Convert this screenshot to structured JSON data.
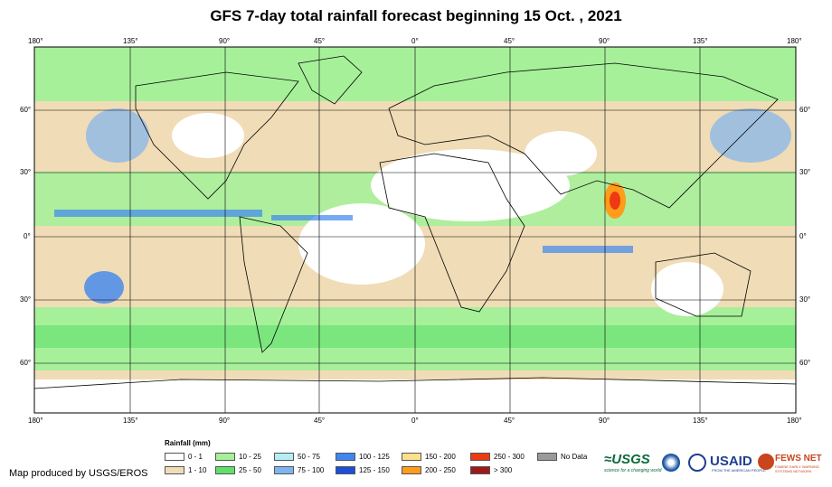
{
  "title": "GFS 7-day total rainfall forecast beginning 15 Oct. , 2021",
  "lon_labels": [
    "180°",
    "135°",
    "90°",
    "45°",
    "0°",
    "45°",
    "90°",
    "135°",
    "180°"
  ],
  "lat_labels": [
    "60°",
    "30°",
    "0°",
    "30°",
    "60°"
  ],
  "legend": {
    "title": "Rainfall (mm)",
    "items": [
      {
        "label": "0 - 1",
        "color": "#ffffff"
      },
      {
        "label": "1 - 10",
        "color": "#f0dcb6"
      },
      {
        "label": "10 - 25",
        "color": "#a6f09a"
      },
      {
        "label": "25 - 50",
        "color": "#5ee06a"
      },
      {
        "label": "50 - 75",
        "color": "#b4eef4"
      },
      {
        "label": "75 - 100",
        "color": "#7fb4f0"
      },
      {
        "label": "100 - 125",
        "color": "#3f86f0"
      },
      {
        "label": "125 - 150",
        "color": "#1c4fd8"
      },
      {
        "label": "150 - 200",
        "color": "#ffe08a"
      },
      {
        "label": "200 - 250",
        "color": "#ff9c1a"
      },
      {
        "label": "250 - 300",
        "color": "#ee3a12"
      },
      {
        "label": "> 300",
        "color": "#9c1a1a"
      },
      {
        "label": "No Data",
        "color": "#9a9a9a"
      }
    ]
  },
  "credit": "Map produced by USGS/EROS",
  "logos": {
    "usgs": "≈USGS",
    "usgs_tagline": "science for a changing world",
    "usaid": "USAID",
    "usaid_tagline": "FROM THE AMERICAN PEOPLE",
    "fews": "FEWS NET",
    "fews_tagline": "FAMINE EARLY WARNING SYSTEMS NETWORK"
  }
}
